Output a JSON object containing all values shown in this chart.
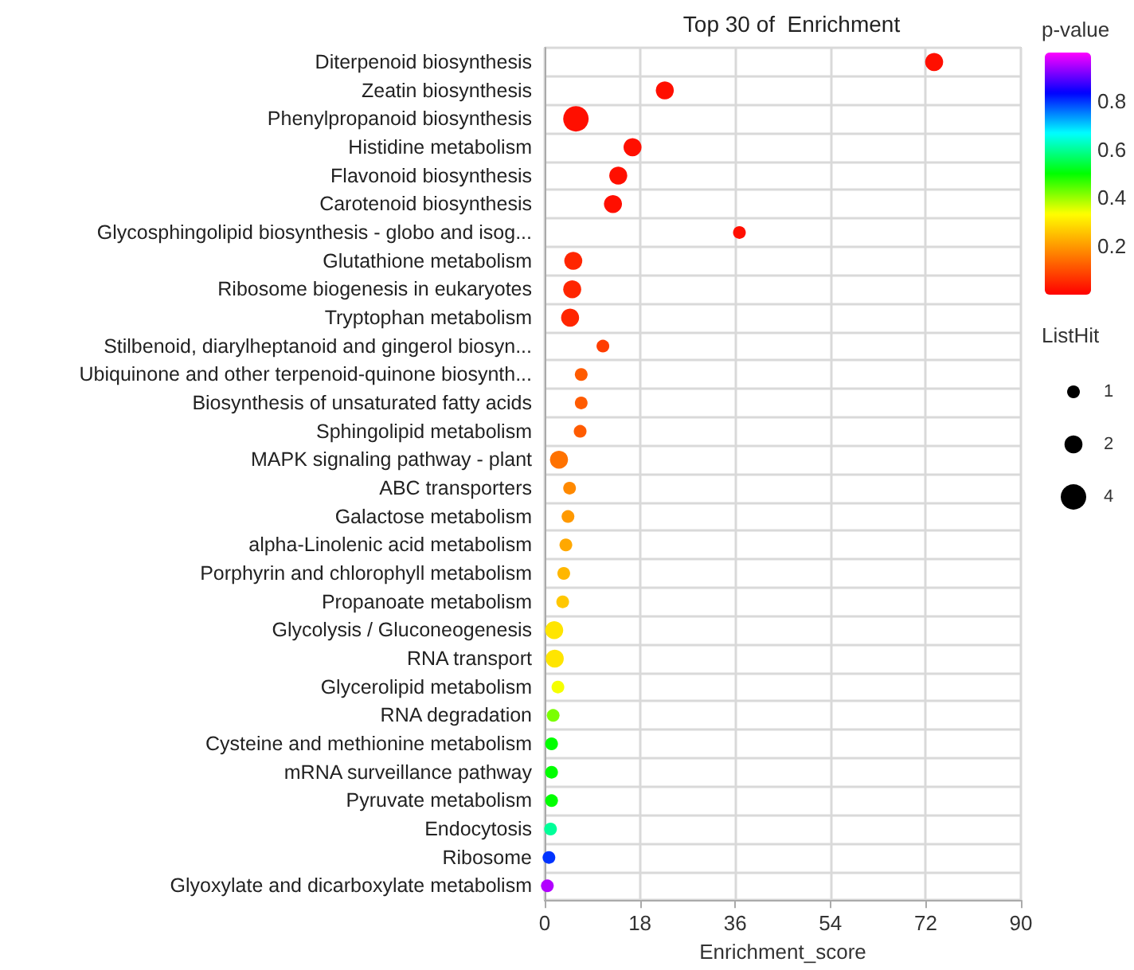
{
  "chart_data": {
    "type": "bubble",
    "title": "Top 30 of  Enrichment",
    "xlabel": "Enrichment_score",
    "clabel": "p-value",
    "legend_title": "ListHit",
    "grid": true,
    "categories": [
      "Diterpenoid biosynthesis",
      "Zeatin biosynthesis",
      "Phenylpropanoid biosynthesis",
      "Histidine metabolism",
      "Flavonoid biosynthesis",
      "Carotenoid biosynthesis",
      "Glycosphingolipid biosynthesis - globo and isog...",
      "Glutathione metabolism",
      "Ribosome biogenesis in eukaryotes",
      "Tryptophan metabolism",
      "Stilbenoid, diarylheptanoid and gingerol biosyn...",
      "Ubiquinone and other terpenoid-quinone biosynth...",
      "Biosynthesis of unsaturated fatty acids",
      "Sphingolipid metabolism",
      "MAPK signaling pathway - plant",
      "ABC transporters",
      "Galactose metabolism",
      "alpha-Linolenic acid metabolism",
      "Porphyrin and chlorophyll metabolism",
      "Propanoate metabolism",
      "Glycolysis / Gluconeogenesis",
      "RNA transport",
      "Glycerolipid metabolism",
      "RNA degradation",
      "Cysteine and methionine metabolism",
      "mRNA surveillance pathway",
      "Pyruvate metabolism",
      "Endocytosis",
      "Ribosome",
      "Glyoxylate and dicarboxylate metabolism"
    ],
    "orientation": "horizontal",
    "values": [
      73.6,
      22.7,
      5.9,
      16.6,
      13.9,
      12.9,
      36.8,
      5.4,
      5.2,
      4.8,
      11.0,
      6.9,
      6.9,
      6.7,
      2.7,
      4.7,
      4.4,
      4.0,
      3.6,
      3.4,
      1.8,
      1.9,
      2.5,
      1.6,
      1.3,
      1.3,
      1.3,
      1.1,
      0.8,
      0.5
    ],
    "sizes": [
      2,
      2,
      4,
      2,
      2,
      2,
      1,
      2,
      2,
      2,
      1,
      1,
      1,
      1,
      2,
      1,
      1,
      1,
      1,
      1,
      2,
      2,
      1,
      1,
      1,
      1,
      1,
      1,
      1,
      1
    ],
    "size_legend": [
      1,
      2,
      4
    ],
    "cvalues": [
      0.02,
      0.02,
      0.02,
      0.02,
      0.02,
      0.02,
      0.02,
      0.05,
      0.05,
      0.05,
      0.08,
      0.12,
      0.12,
      0.12,
      0.15,
      0.18,
      0.2,
      0.22,
      0.24,
      0.26,
      0.3,
      0.3,
      0.34,
      0.42,
      0.5,
      0.5,
      0.5,
      0.6,
      0.8,
      0.95
    ],
    "clim": [
      0,
      1
    ],
    "cticks": [
      0.2,
      0.4,
      0.6,
      0.8
    ],
    "xlim": [
      0,
      90
    ],
    "xticks": [
      0,
      18,
      36,
      54,
      72,
      90
    ]
  }
}
